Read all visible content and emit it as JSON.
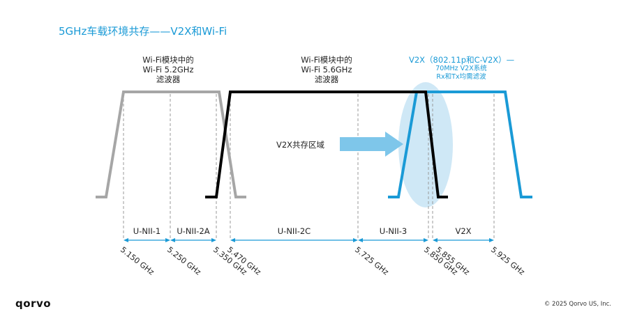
{
  "title": "5GHz车载环境共存——V2X和Wi-Fi",
  "filters": {
    "wifi_52": [
      "Wi-Fi模块中的",
      "Wi-Fi 5.2GHz",
      "滤波器"
    ],
    "wifi_56": [
      "Wi-Fi模块中的",
      "Wi-Fi 5.6GHz",
      "滤波器"
    ],
    "v2x_main": "V2X（802.11p和C-V2X）—",
    "v2x_sub": [
      "70MHz V2X系统",
      "Rx和Tx均需滤波"
    ]
  },
  "coexistence_label": "V2X共存区域",
  "bands": [
    "U-NII-1",
    "U-NII-2A",
    "U-NII-2C",
    "U-NII-3",
    "V2X"
  ],
  "frequencies": [
    "5.150 GHz",
    "5.250 GHz",
    "5.350 GHz",
    "5.470 GHz",
    "5.725 GHz",
    "5.850 GHz",
    "5.855 GHz",
    "5.925 GHz"
  ],
  "logo": "qorvo",
  "copyright": "© 2025 Qorvo US, Inc.",
  "colors": {
    "accent": "#1a9ad6",
    "wifi52": "#a6a6a6",
    "wifi56": "#000000",
    "v2x": "#1a9ad6",
    "ellipse": "#cfe8f6",
    "arrow": "#7ec6ea"
  }
}
